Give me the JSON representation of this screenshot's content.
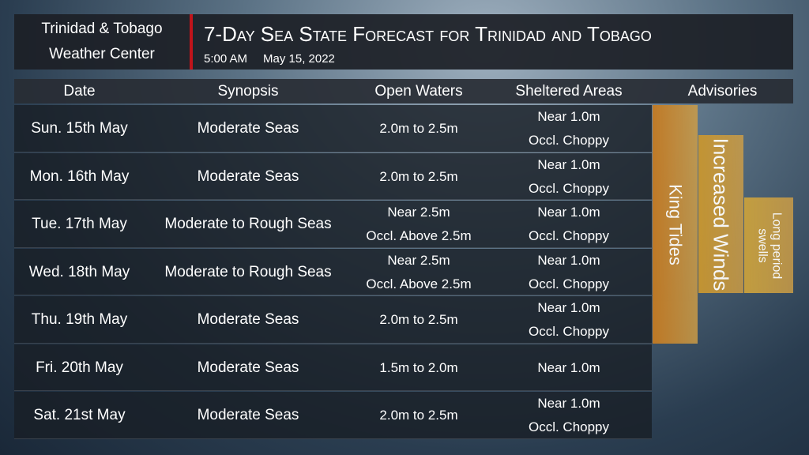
{
  "header": {
    "org": [
      "Trinidad & Tobago",
      "Weather Center"
    ],
    "title": "7-Day Sea State Forecast for Trinidad and Tobago",
    "time": "5:00 AM",
    "date": "May 15, 2022"
  },
  "table": {
    "columns": [
      "Date",
      "Synopsis",
      "Open Waters",
      "Sheltered Areas",
      "Advisories"
    ],
    "rows": [
      {
        "date": "Sun. 15th May",
        "synopsis": "Moderate Seas",
        "open_waters": [
          "2.0m to 2.5m"
        ],
        "sheltered": [
          "Near 1.0m",
          "Occl. Choppy"
        ]
      },
      {
        "date": "Mon. 16th May",
        "synopsis": "Moderate Seas",
        "open_waters": [
          "2.0m to 2.5m"
        ],
        "sheltered": [
          "Near 1.0m",
          "Occl. Choppy"
        ]
      },
      {
        "date": "Tue. 17th May",
        "synopsis": "Moderate to Rough Seas",
        "open_waters": [
          "Near 2.5m",
          "Occl. Above 2.5m"
        ],
        "sheltered": [
          "Near 1.0m",
          "Occl. Choppy"
        ]
      },
      {
        "date": "Wed. 18th May",
        "synopsis": "Moderate to Rough Seas",
        "open_waters": [
          "Near 2.5m",
          "Occl. Above 2.5m"
        ],
        "sheltered": [
          "Near 1.0m",
          "Occl. Choppy"
        ]
      },
      {
        "date": "Thu. 19th May",
        "synopsis": "Moderate Seas",
        "open_waters": [
          "2.0m to 2.5m"
        ],
        "sheltered": [
          "Near 1.0m",
          "Occl. Choppy"
        ]
      },
      {
        "date": "Fri. 20th May",
        "synopsis": "Moderate Seas",
        "open_waters": [
          "1.5m to 2.0m"
        ],
        "sheltered": [
          "Near 1.0m"
        ]
      },
      {
        "date": "Sat. 21st May",
        "synopsis": "Moderate Seas",
        "open_waters": [
          "2.0m to 2.5m"
        ],
        "sheltered": [
          "Near 1.0m",
          "Occl. Choppy"
        ]
      }
    ]
  },
  "advisories": [
    {
      "lines": [
        "King Tides"
      ]
    },
    {
      "lines": [
        "Increased Winds"
      ]
    },
    {
      "lines": [
        "Long period",
        "swells"
      ]
    }
  ]
}
